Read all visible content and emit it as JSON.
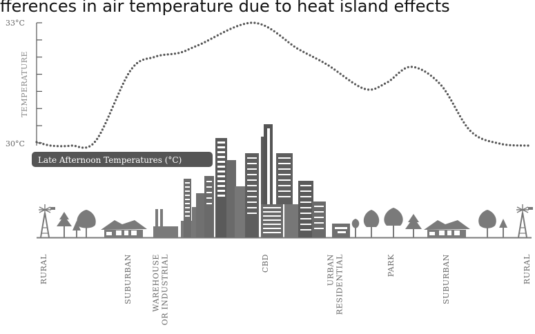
{
  "title": "fferences in air temperature due to heat island effects",
  "chart_data": {
    "type": "line",
    "ylabel": "TEMPERATURE",
    "y_ticks": [
      "33°C",
      "30°C"
    ],
    "ylim": [
      30,
      33
    ],
    "legend": "Late Afternoon Temperatures (°C)",
    "zones": [
      {
        "label": [
          "RURAL"
        ]
      },
      {
        "label": [
          "SUBURBAN"
        ]
      },
      {
        "label": [
          "WAREHOUSE",
          "OR INDUSTRIAL"
        ]
      },
      {
        "label": [
          "CBD"
        ]
      },
      {
        "label": [
          "URBAN",
          "RESIDENTIAL"
        ]
      },
      {
        "label": [
          "PARK"
        ]
      },
      {
        "label": [
          "SUBURBAN"
        ]
      },
      {
        "label": [
          "RURAL"
        ]
      }
    ],
    "profile": [
      [
        0.0,
        30.02
      ],
      [
        0.03,
        29.93
      ],
      [
        0.07,
        29.93
      ],
      [
        0.12,
        30.05
      ],
      [
        0.19,
        31.8
      ],
      [
        0.24,
        32.15
      ],
      [
        0.29,
        32.25
      ],
      [
        0.33,
        32.45
      ],
      [
        0.44,
        33.0
      ],
      [
        0.53,
        32.35
      ],
      [
        0.59,
        31.95
      ],
      [
        0.665,
        31.35
      ],
      [
        0.71,
        31.5
      ],
      [
        0.76,
        31.9
      ],
      [
        0.82,
        31.45
      ],
      [
        0.88,
        30.3
      ],
      [
        0.94,
        29.98
      ],
      [
        1.0,
        29.93
      ]
    ],
    "grid": false
  }
}
